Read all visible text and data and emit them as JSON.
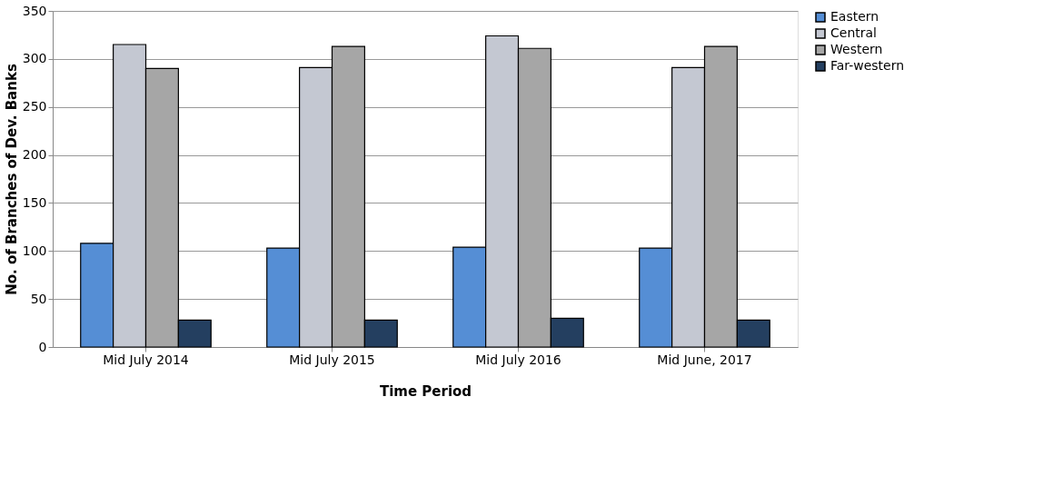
{
  "chart_data": {
    "type": "bar",
    "xlabel": "Time Period",
    "ylabel": "No. of Branches of Dev. Banks",
    "categories": [
      "Mid July 2014",
      "Mid July 2015",
      "Mid July 2016",
      "Mid June, 2017"
    ],
    "series": [
      {
        "name": "Eastern",
        "color": "#558ed5",
        "values": [
          108,
          103,
          104,
          103
        ]
      },
      {
        "name": "Central",
        "color": "#c4c8d2",
        "values": [
          315,
          291,
          324,
          291
        ]
      },
      {
        "name": "Western",
        "color": "#a6a6a6",
        "values": [
          290,
          313,
          311,
          313
        ]
      },
      {
        "name": "Far-western",
        "color": "#243f60",
        "values": [
          28,
          28,
          30,
          28
        ]
      }
    ],
    "ylim": [
      0,
      350
    ],
    "yticks": [
      0,
      50,
      100,
      150,
      200,
      250,
      300,
      350
    ],
    "grid": "y",
    "legend": "right"
  }
}
